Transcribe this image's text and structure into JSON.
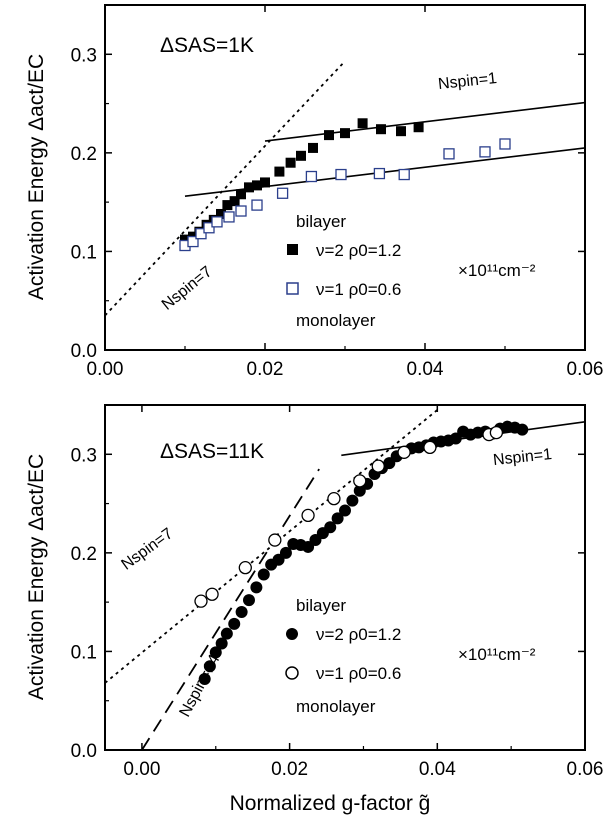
{
  "figure": {
    "xlabel": "Normalized g-factor g̃"
  },
  "chart_data": [
    {
      "type": "scatter",
      "panel": "top",
      "title": "",
      "annotation_label": "ΔSAS=1K",
      "xlabel": "",
      "ylabel": "Activation Energy Δact/EC",
      "xlim": [
        0.0,
        0.06
      ],
      "ylim": [
        0.0,
        0.35
      ],
      "x_ticks": [
        0.0,
        0.02,
        0.04,
        0.06
      ],
      "x_tick_labels": [
        "0.00",
        "0.02",
        "0.04",
        "0.06"
      ],
      "y_ticks": [
        0.0,
        0.1,
        0.2,
        0.3
      ],
      "y_tick_labels": [
        "0.0",
        "0.1",
        "0.2",
        "0.3"
      ],
      "grid": false,
      "legend_header": "bilayer",
      "legend_footer": "monolayer",
      "unit_label": "×10¹¹cm⁻²",
      "series": [
        {
          "name": "ν=2  ρ0=1.2",
          "marker": "filled-square",
          "color": "#000000",
          "points": [
            [
              0.01,
              0.112
            ],
            [
              0.011,
              0.115
            ],
            [
              0.0118,
              0.12
            ],
            [
              0.0127,
              0.127
            ],
            [
              0.0136,
              0.132
            ],
            [
              0.0145,
              0.138
            ],
            [
              0.0153,
              0.147
            ],
            [
              0.0162,
              0.151
            ],
            [
              0.017,
              0.158
            ],
            [
              0.018,
              0.165
            ],
            [
              0.019,
              0.167
            ],
            [
              0.02,
              0.17
            ],
            [
              0.0218,
              0.181
            ],
            [
              0.0232,
              0.19
            ],
            [
              0.0245,
              0.197
            ],
            [
              0.026,
              0.205
            ],
            [
              0.028,
              0.218
            ],
            [
              0.03,
              0.22
            ],
            [
              0.0322,
              0.23
            ],
            [
              0.0345,
              0.224
            ],
            [
              0.037,
              0.222
            ],
            [
              0.0392,
              0.226
            ]
          ]
        },
        {
          "name": "ν=1  ρ0=0.6",
          "marker": "open-square",
          "color": "#2b3f8c",
          "points": [
            [
              0.01,
              0.106
            ],
            [
              0.011,
              0.11
            ],
            [
              0.012,
              0.118
            ],
            [
              0.013,
              0.124
            ],
            [
              0.014,
              0.13
            ],
            [
              0.0155,
              0.135
            ],
            [
              0.017,
              0.141
            ],
            [
              0.019,
              0.147
            ],
            [
              0.0222,
              0.159
            ],
            [
              0.0258,
              0.176
            ],
            [
              0.0295,
              0.178
            ],
            [
              0.0343,
              0.179
            ],
            [
              0.0374,
              0.178
            ],
            [
              0.043,
              0.199
            ],
            [
              0.0475,
              0.201
            ],
            [
              0.05,
              0.209
            ]
          ]
        }
      ],
      "lines": [
        {
          "label": "Nspin=1",
          "style": "solid",
          "from": [
            0.02,
            0.212
          ],
          "to": [
            0.06,
            0.251
          ]
        },
        {
          "label": "",
          "style": "solid",
          "from": [
            0.01,
            0.156
          ],
          "to": [
            0.06,
            0.205
          ]
        },
        {
          "label": "Nspin=7",
          "style": "dotted",
          "from": [
            0.0,
            0.035
          ],
          "to": [
            0.03,
            0.293
          ]
        }
      ]
    },
    {
      "type": "scatter",
      "panel": "bottom",
      "title": "",
      "annotation_label": "ΔSAS=11K",
      "xlabel": "Normalized g-factor g̃",
      "ylabel": "Activation Energy Δact/EC",
      "xlim": [
        -0.005,
        0.06
      ],
      "ylim": [
        0.0,
        0.35
      ],
      "x_ticks": [
        0.0,
        0.02,
        0.04,
        0.06
      ],
      "x_tick_labels": [
        "0.00",
        "0.02",
        "0.04",
        "0.06"
      ],
      "y_ticks": [
        0.0,
        0.1,
        0.2,
        0.3
      ],
      "y_tick_labels": [
        "0.0",
        "0.1",
        "0.2",
        "0.3"
      ],
      "grid": false,
      "legend_header": "bilayer",
      "legend_footer": "monolayer",
      "unit_label": "×10¹¹cm⁻²",
      "series": [
        {
          "name": "ν=2  ρ0=1.2",
          "marker": "filled-circle",
          "color": "#000000",
          "points": [
            [
              0.0085,
              0.072
            ],
            [
              0.0092,
              0.085
            ],
            [
              0.01,
              0.099
            ],
            [
              0.0108,
              0.108
            ],
            [
              0.0115,
              0.118
            ],
            [
              0.0125,
              0.128
            ],
            [
              0.0135,
              0.14
            ],
            [
              0.0145,
              0.152
            ],
            [
              0.0155,
              0.165
            ],
            [
              0.0165,
              0.178
            ],
            [
              0.0175,
              0.188
            ],
            [
              0.0185,
              0.193
            ],
            [
              0.0195,
              0.2
            ],
            [
              0.0205,
              0.209
            ],
            [
              0.0215,
              0.208
            ],
            [
              0.0225,
              0.206
            ],
            [
              0.0235,
              0.213
            ],
            [
              0.0245,
              0.22
            ],
            [
              0.0255,
              0.226
            ],
            [
              0.0265,
              0.235
            ],
            [
              0.0275,
              0.243
            ],
            [
              0.0285,
              0.253
            ],
            [
              0.0295,
              0.263
            ],
            [
              0.0305,
              0.27
            ],
            [
              0.0315,
              0.28
            ],
            [
              0.0325,
              0.286
            ],
            [
              0.0335,
              0.291
            ],
            [
              0.0345,
              0.298
            ],
            [
              0.0355,
              0.302
            ],
            [
              0.0365,
              0.306
            ],
            [
              0.0375,
              0.307
            ],
            [
              0.0385,
              0.309
            ],
            [
              0.0395,
              0.312
            ],
            [
              0.0405,
              0.313
            ],
            [
              0.0415,
              0.314
            ],
            [
              0.0425,
              0.316
            ],
            [
              0.0435,
              0.323
            ],
            [
              0.0445,
              0.32
            ],
            [
              0.0455,
              0.322
            ],
            [
              0.0465,
              0.323
            ],
            [
              0.0475,
              0.321
            ],
            [
              0.0485,
              0.326
            ],
            [
              0.0495,
              0.328
            ],
            [
              0.0505,
              0.327
            ],
            [
              0.0515,
              0.325
            ]
          ]
        },
        {
          "name": "ν=1  ρ0=0.6",
          "marker": "open-circle",
          "color": "#000000",
          "points": [
            [
              0.008,
              0.151
            ],
            [
              0.0095,
              0.158
            ],
            [
              0.014,
              0.185
            ],
            [
              0.018,
              0.213
            ],
            [
              0.0225,
              0.238
            ],
            [
              0.026,
              0.255
            ],
            [
              0.0295,
              0.273
            ],
            [
              0.032,
              0.288
            ],
            [
              0.0355,
              0.302
            ],
            [
              0.039,
              0.307
            ],
            [
              0.047,
              0.32
            ],
            [
              0.048,
              0.322
            ]
          ]
        }
      ],
      "lines": [
        {
          "label": "Nspin=1",
          "style": "solid",
          "from": [
            0.027,
            0.299
          ],
          "to": [
            0.06,
            0.333
          ]
        },
        {
          "label": "Nspin=7",
          "style": "dotted",
          "from": [
            -0.005,
            0.068
          ],
          "to": [
            0.04,
            0.345
          ]
        },
        {
          "label": "Nspin=14",
          "style": "dashed",
          "from": [
            0.0,
            0.0
          ],
          "to": [
            0.024,
            0.285
          ]
        }
      ]
    }
  ]
}
